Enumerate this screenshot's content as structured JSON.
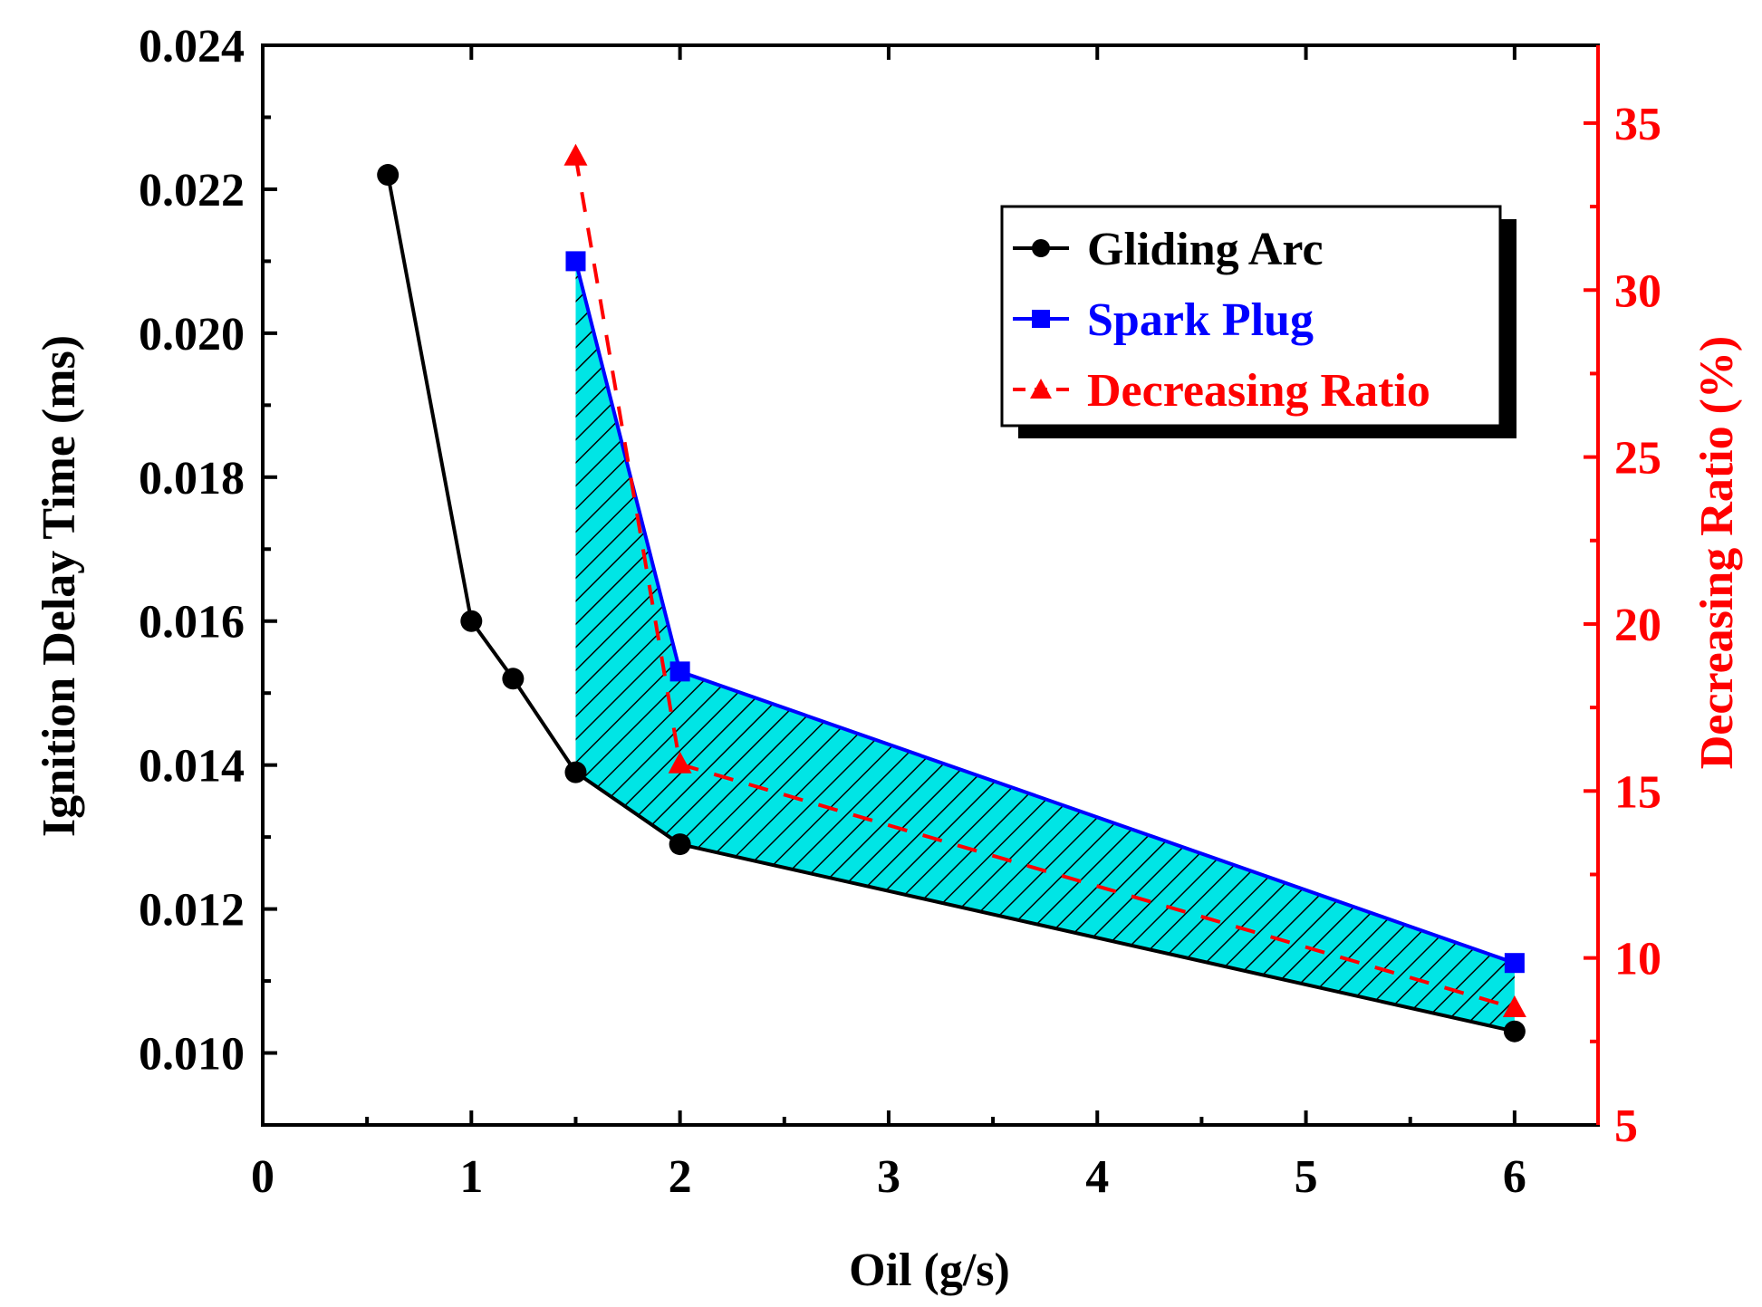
{
  "chart_data": {
    "type": "line",
    "title": "",
    "xlabel": "Oil (g/s)",
    "ylabel": "Ignition Delay Time (ms)",
    "y2label": "Decreasing Ratio (%)",
    "xlim": [
      0,
      6.4
    ],
    "ylim": [
      0.009,
      0.024
    ],
    "y2lim": [
      5,
      37.33
    ],
    "x_ticks": [
      "0",
      "1",
      "2",
      "3",
      "4",
      "5",
      "6"
    ],
    "y_ticks": [
      "0.010",
      "0.012",
      "0.014",
      "0.016",
      "0.018",
      "0.020",
      "0.022",
      "0.024"
    ],
    "y2_ticks": [
      "5",
      "10",
      "15",
      "20",
      "25",
      "30",
      "35"
    ],
    "shaded_region": "between Spark Plug and Gliding Arc, x from 1.5 to 6",
    "legend_position": "top-right",
    "series": [
      {
        "name": "Gliding Arc",
        "axis": "left",
        "color": "#000000",
        "marker": "circle",
        "line": "solid",
        "x": [
          0.6,
          1.0,
          1.2,
          1.5,
          2.0,
          6.0
        ],
        "values": [
          0.0222,
          0.016,
          0.0152,
          0.0139,
          0.0129,
          0.0103
        ]
      },
      {
        "name": "Spark Plug",
        "axis": "left",
        "color": "#0000ff",
        "marker": "square",
        "line": "solid",
        "x": [
          1.5,
          2.0,
          6.0
        ],
        "values": [
          0.021,
          0.0153,
          0.01125
        ]
      },
      {
        "name": "Decreasing Ratio",
        "axis": "right",
        "color": "#ff0000",
        "marker": "triangle",
        "line": "dashed",
        "x": [
          1.5,
          2.0,
          6.0
        ],
        "values": [
          34.0,
          15.8,
          8.5
        ]
      }
    ]
  },
  "colors": {
    "fill": "#00e5e5",
    "hatch": "#000000",
    "right_axis": "#ff0000"
  }
}
